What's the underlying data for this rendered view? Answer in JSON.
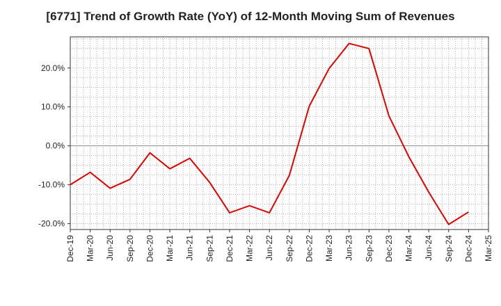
{
  "chart_data": {
    "type": "line",
    "title": "[6771]  Trend of Growth Rate (YoY) of 12-Month Moving Sum of Revenues",
    "xlabel": "",
    "ylabel": "",
    "y_unit": "%",
    "ylim": [
      -21.5,
      28
    ],
    "yticks": [
      -20,
      -10,
      0,
      10,
      20
    ],
    "ytick_labels": [
      "-20.0%",
      "-10.0%",
      "0.0%",
      "10.0%",
      "20.0%"
    ],
    "categories": [
      "Dec-19",
      "Mar-20",
      "Jun-20",
      "Sep-20",
      "Dec-20",
      "Mar-21",
      "Jun-21",
      "Sep-21",
      "Dec-21",
      "Mar-22",
      "Jun-22",
      "Sep-22",
      "Dec-22",
      "Mar-23",
      "Jun-23",
      "Sep-23",
      "Dec-23",
      "Mar-24",
      "Jun-24",
      "Sep-24",
      "Dec-24",
      "Mar-25"
    ],
    "series": [
      {
        "color": "#e00000",
        "values": [
          -10.0,
          -6.8,
          -10.9,
          -8.6,
          -1.8,
          -5.9,
          -3.2,
          -9.4,
          -17.2,
          -15.4,
          -17.2,
          -7.6,
          10.2,
          19.9,
          26.3,
          25.0,
          7.7,
          -2.8,
          -11.9,
          -20.2,
          -17.0,
          null
        ]
      }
    ],
    "grid": true,
    "grid_style": "dotted",
    "legend": "none",
    "colors": {
      "line": "#e00000",
      "zero_line": "#888888",
      "grid": "#999999",
      "axis": "#333333"
    }
  }
}
